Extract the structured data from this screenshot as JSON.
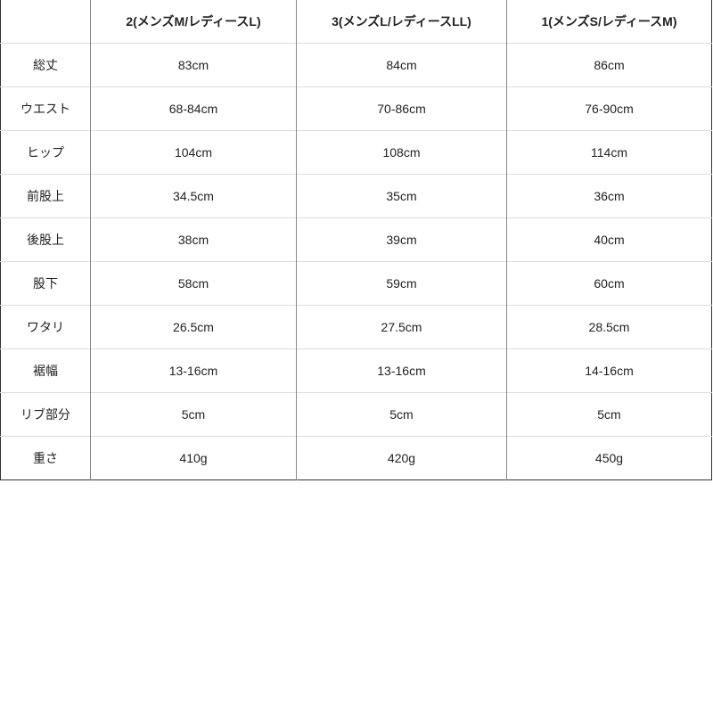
{
  "headers": [
    "",
    "2(メンズM/レディースL)",
    "3(メンズL/レディースLL)",
    "1(メンズS/レディースM)"
  ],
  "rows": [
    {
      "label": "総丈",
      "values": [
        "83cm",
        "84cm",
        "86cm"
      ]
    },
    {
      "label": "ウエスト",
      "values": [
        "68-84cm",
        "70-86cm",
        "76-90cm"
      ]
    },
    {
      "label": "ヒップ",
      "values": [
        "104cm",
        "108cm",
        "114cm"
      ]
    },
    {
      "label": "前股上",
      "values": [
        "34.5cm",
        "35cm",
        "36cm"
      ]
    },
    {
      "label": "後股上",
      "values": [
        "38cm",
        "39cm",
        "40cm"
      ]
    },
    {
      "label": "股下",
      "values": [
        "58cm",
        "59cm",
        "60cm"
      ]
    },
    {
      "label": "ワタリ",
      "values": [
        "26.5cm",
        "27.5cm",
        "28.5cm"
      ]
    },
    {
      "label": "裾幅",
      "values": [
        "13-16cm",
        "13-16cm",
        "14-16cm"
      ]
    },
    {
      "label": "リブ部分",
      "values": [
        "5cm",
        "5cm",
        "5cm"
      ]
    },
    {
      "label": "重さ",
      "values": [
        "410g",
        "420g",
        "450g"
      ]
    }
  ]
}
